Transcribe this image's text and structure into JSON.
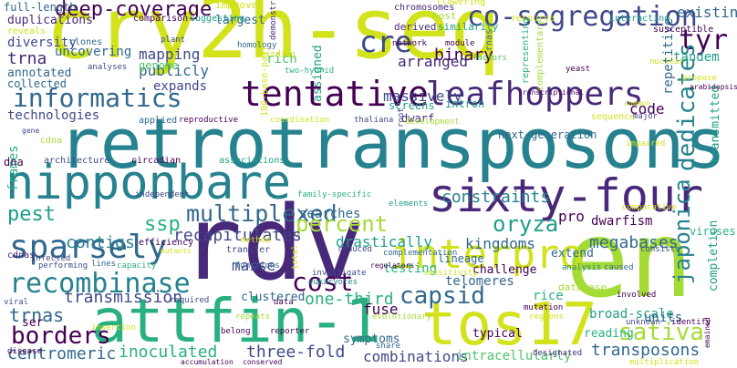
{
  "palette": {
    "yellow": "#d2e21b",
    "lime": "#a5db36",
    "green": "#4ec36b",
    "teal": "#2ab07f",
    "cyan": "#1f9e89",
    "blue": "#26828e",
    "steel": "#31688e",
    "indigo": "#3e4989",
    "violet": "#482878",
    "dark": "#440154"
  },
  "words": [
    {
      "text": "cry2h-seq",
      "color": "yellow"
    },
    {
      "text": "retrotransposons",
      "color": "blue"
    },
    {
      "text": "rdv",
      "color": "violet"
    },
    {
      "text": "en",
      "color": "lime"
    },
    {
      "text": "attfin-1",
      "color": "teal"
    },
    {
      "text": "tos17",
      "color": "yellow"
    },
    {
      "text": "nipponbare",
      "color": "blue"
    },
    {
      "text": "sixty-four",
      "color": "violet"
    },
    {
      "text": "tentative",
      "color": "dark"
    },
    {
      "text": "interpro",
      "color": "yellow"
    },
    {
      "text": "sparsely",
      "color": "steel"
    },
    {
      "text": "leafhoppers",
      "color": "violet"
    },
    {
      "text": "co-segregation",
      "color": "indigo"
    },
    {
      "text": "recombinase",
      "color": "blue"
    },
    {
      "text": "deep-coverage",
      "color": "dark"
    },
    {
      "text": "informatics",
      "color": "steel"
    },
    {
      "text": "multiplexed",
      "color": "steel"
    },
    {
      "text": "cre",
      "color": "indigo"
    },
    {
      "text": "tyr",
      "color": "dark"
    },
    {
      "text": "percent",
      "color": "lime"
    },
    {
      "text": "oryza",
      "color": "cyan"
    },
    {
      "text": "cost",
      "color": "dark"
    },
    {
      "text": "capsid",
      "color": "steel"
    },
    {
      "text": "borders",
      "color": "dark"
    },
    {
      "text": "sativa",
      "color": "lime"
    },
    {
      "text": "dedicates",
      "color": "blue"
    },
    {
      "text": "japonica",
      "color": "blue"
    },
    {
      "text": "binary",
      "color": "dark"
    },
    {
      "text": "arranged",
      "color": "violet"
    },
    {
      "text": "massively",
      "color": "indigo"
    },
    {
      "text": "constraints",
      "color": "blue"
    },
    {
      "text": "megabases",
      "color": "steel"
    },
    {
      "text": "recapitulates",
      "color": "indigo"
    },
    {
      "text": "ssp",
      "color": "teal"
    },
    {
      "text": "pest",
      "color": "cyan"
    },
    {
      "text": "contigs",
      "color": "blue"
    },
    {
      "text": "trna",
      "color": "violet"
    },
    {
      "text": "trnas",
      "color": "steel"
    },
    {
      "text": "transmission",
      "color": "indigo"
    },
    {
      "text": "one-third",
      "color": "teal"
    },
    {
      "text": "three-fold",
      "color": "indigo"
    },
    {
      "text": "inoculated",
      "color": "teal"
    },
    {
      "text": "centromeric",
      "color": "steel"
    },
    {
      "text": "transposons",
      "color": "steel"
    },
    {
      "text": "combinations",
      "color": "indigo"
    },
    {
      "text": "intracellularly",
      "color": "green"
    },
    {
      "text": "broad-scale",
      "color": "cyan"
    },
    {
      "text": "telomeres",
      "color": "steel"
    },
    {
      "text": "kingdoms",
      "color": "steel"
    },
    {
      "text": "fuse",
      "color": "dark"
    },
    {
      "text": "masse",
      "color": "indigo"
    },
    {
      "text": "drastically",
      "color": "cyan"
    },
    {
      "text": "searches",
      "color": "steel"
    },
    {
      "text": "publicly",
      "color": "steel"
    },
    {
      "text": "expands",
      "color": "indigo"
    },
    {
      "text": "mapping",
      "color": "indigo"
    },
    {
      "text": "genome",
      "color": "green"
    },
    {
      "text": "uncovering",
      "color": "steel"
    },
    {
      "text": "diversity",
      "color": "indigo"
    },
    {
      "text": "annotated",
      "color": "steel"
    },
    {
      "text": "collected",
      "color": "steel"
    },
    {
      "text": "technologies",
      "color": "indigo"
    },
    {
      "text": "duplications",
      "color": "violet"
    },
    {
      "text": "full-length",
      "color": "steel"
    },
    {
      "text": "existing",
      "color": "steel"
    },
    {
      "text": "tandem",
      "color": "cyan"
    },
    {
      "text": "repetitive",
      "color": "steel"
    },
    {
      "text": "units",
      "color": "steel"
    },
    {
      "text": "code",
      "color": "dark"
    },
    {
      "text": "rich",
      "color": "green"
    },
    {
      "text": "largest",
      "color": "steel"
    },
    {
      "text": "dwarfism",
      "color": "dark"
    },
    {
      "text": "pro",
      "color": "dark"
    },
    {
      "text": "testing",
      "color": "teal"
    },
    {
      "text": "rice",
      "color": "teal"
    },
    {
      "text": "frames",
      "color": "teal"
    },
    {
      "text": "completion",
      "color": "cyan"
    },
    {
      "text": "transmitted",
      "color": "cyan"
    },
    {
      "text": "assigned",
      "color": "cyan"
    },
    {
      "text": "challenge",
      "color": "dark"
    },
    {
      "text": "next-generation",
      "color": "steel"
    },
    {
      "text": "lineage",
      "color": "steel"
    },
    {
      "text": "symptoms",
      "color": "steel"
    },
    {
      "text": "typical",
      "color": "dark"
    },
    {
      "text": "clustered",
      "color": "steel"
    },
    {
      "text": "extend",
      "color": "steel"
    },
    {
      "text": "reading",
      "color": "teal"
    },
    {
      "text": "ser",
      "color": "dark"
    },
    {
      "text": "dna",
      "color": "dark"
    },
    {
      "text": "viruses",
      "color": "teal"
    },
    {
      "text": "screens",
      "color": "cyan"
    },
    {
      "text": "intron",
      "color": "cyan"
    },
    {
      "text": "dwarf",
      "color": "violet"
    },
    {
      "text": "derived",
      "color": "violet"
    },
    {
      "text": "host",
      "color": "lime"
    },
    {
      "text": "similarity",
      "color": "cyan"
    },
    {
      "text": "chromosomes",
      "color": "violet"
    },
    {
      "text": "flowering",
      "color": "yellow"
    },
    {
      "text": "resource",
      "color": "yellow"
    },
    {
      "text": "interacting",
      "color": "cyan"
    },
    {
      "text": "susceptible",
      "color": "dark"
    },
    {
      "text": "comparison",
      "color": "dark"
    },
    {
      "text": "suggesting",
      "color": "cyan"
    },
    {
      "text": "improved",
      "color": "yellow"
    },
    {
      "text": "clones",
      "color": "steel"
    },
    {
      "text": "plant",
      "color": "indigo"
    },
    {
      "text": "homology",
      "color": "steel"
    },
    {
      "text": "binding",
      "color": "yellow"
    },
    {
      "text": "demonstrate",
      "color": "violet"
    },
    {
      "text": "reveals",
      "color": "yellow"
    },
    {
      "text": "analyses",
      "color": "indigo"
    },
    {
      "text": "two-hybrid",
      "color": "teal"
    },
    {
      "text": "180-base-pair",
      "color": "yellow"
    },
    {
      "text": "network",
      "color": "dark"
    },
    {
      "text": "module",
      "color": "dark"
    },
    {
      "text": "rnas",
      "color": "steel"
    },
    {
      "text": "factors",
      "color": "green"
    },
    {
      "text": "yeast",
      "color": "dark"
    },
    {
      "text": "nuclear",
      "color": "yellow"
    },
    {
      "text": "propose",
      "color": "yellow"
    },
    {
      "text": "transcriptional",
      "color": "dark"
    },
    {
      "text": "representing",
      "color": "teal"
    },
    {
      "text": "complementary",
      "color": "lime"
    },
    {
      "text": "applied",
      "color": "steel"
    },
    {
      "text": "reproductive",
      "color": "dark"
    },
    {
      "text": "coordination",
      "color": "yellow"
    },
    {
      "text": "thaliana",
      "color": "indigo"
    },
    {
      "text": "root",
      "color": "indigo"
    },
    {
      "text": "development",
      "color": "lime"
    },
    {
      "text": "sequence",
      "color": "yellow"
    },
    {
      "text": "major",
      "color": "indigo"
    },
    {
      "text": "impaired",
      "color": "yellow"
    },
    {
      "text": "gene",
      "color": "indigo"
    },
    {
      "text": "cdna",
      "color": "lime"
    },
    {
      "text": "architecture",
      "color": "indigo"
    },
    {
      "text": "circadian",
      "color": "dark"
    },
    {
      "text": "associations",
      "color": "cyan"
    },
    {
      "text": "family-specific",
      "color": "teal"
    },
    {
      "text": "elements",
      "color": "cyan"
    },
    {
      "text": "independent",
      "color": "indigo"
    },
    {
      "text": "efficiency",
      "color": "dark"
    },
    {
      "text": "mutants",
      "color": "yellow"
    },
    {
      "text": "cdnas",
      "color": "violet"
    },
    {
      "text": "infected",
      "color": "indigo"
    },
    {
      "text": "method",
      "color": "yellow"
    },
    {
      "text": "transfer",
      "color": "indigo"
    },
    {
      "text": "reduced",
      "color": "indigo"
    },
    {
      "text": "complementation",
      "color": "steel"
    },
    {
      "text": "regulators",
      "color": "dark"
    },
    {
      "text": "sensitivity",
      "color": "yellow"
    },
    {
      "text": "analysis",
      "color": "blue"
    },
    {
      "text": "caused",
      "color": "steel"
    },
    {
      "text": "consists",
      "color": "indigo"
    },
    {
      "text": "performing",
      "color": "indigo"
    },
    {
      "text": "lines",
      "color": "steel"
    },
    {
      "text": "capacity",
      "color": "teal"
    },
    {
      "text": "functions",
      "color": "steel"
    },
    {
      "text": "total",
      "color": "yellow"
    },
    {
      "text": "eukaryotes",
      "color": "blue"
    },
    {
      "text": "investigate",
      "color": "indigo"
    },
    {
      "text": "database",
      "color": "lime"
    },
    {
      "text": "mutation",
      "color": "dark"
    },
    {
      "text": "regions",
      "color": "yellow"
    },
    {
      "text": "involved",
      "color": "dark"
    },
    {
      "text": "unknown",
      "color": "indigo"
    },
    {
      "text": "identify",
      "color": "dark"
    },
    {
      "text": "emained",
      "color": "dark"
    },
    {
      "text": "viral",
      "color": "indigo"
    },
    {
      "text": "disease",
      "color": "dark"
    },
    {
      "text": "required",
      "color": "indigo"
    },
    {
      "text": "data",
      "color": "dark"
    },
    {
      "text": "repeats",
      "color": "lime"
    },
    {
      "text": "belong",
      "color": "dark"
    },
    {
      "text": "reporter",
      "color": "dark"
    },
    {
      "text": "evolutionary",
      "color": "lime"
    },
    {
      "text": "insertion",
      "color": "yellow"
    },
    {
      "text": "share",
      "color": "steel"
    },
    {
      "text": "accumulation",
      "color": "dark"
    },
    {
      "text": "conserved",
      "color": "dark"
    },
    {
      "text": "designated",
      "color": "violet"
    },
    {
      "text": "multiplication",
      "color": "yellow"
    },
    {
      "text": "comparative",
      "color": "yellow"
    },
    {
      "text": "common",
      "color": "yellow"
    },
    {
      "text": "arabidopsis",
      "color": "dark"
    }
  ]
}
